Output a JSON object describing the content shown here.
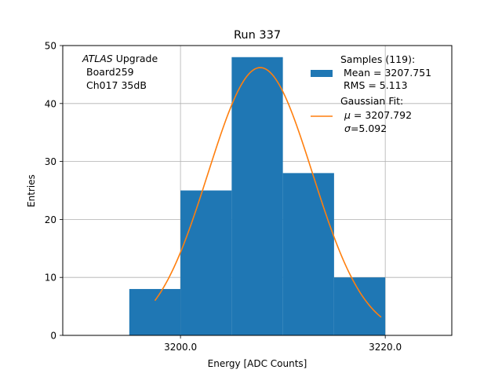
{
  "chart_data": {
    "type": "bar",
    "title": "Run 337",
    "xlabel": "Energy [ADC Counts]",
    "ylabel": "Entries",
    "xlim": [
      3188.5,
      3226.5
    ],
    "ylim": [
      0,
      50
    ],
    "x_ticks": [
      3200.0,
      3220.0
    ],
    "x_tick_labels": [
      "3200.0",
      "3220.0"
    ],
    "y_ticks": [
      0,
      10,
      20,
      30,
      40,
      50
    ],
    "y_tick_labels": [
      "0",
      "10",
      "20",
      "30",
      "40",
      "50"
    ],
    "grid": true,
    "bins": [
      {
        "left": 3195,
        "right": 3200,
        "count": 8
      },
      {
        "left": 3200,
        "right": 3205,
        "count": 25
      },
      {
        "left": 3205,
        "right": 3210,
        "count": 48
      },
      {
        "left": 3210,
        "right": 3215,
        "count": 28
      },
      {
        "left": 3215,
        "right": 3220,
        "count": 10
      }
    ],
    "fit": {
      "type": "gaussian",
      "amplitude": 46.2,
      "mu": 3207.792,
      "sigma": 5.092,
      "x_range": [
        3197.5,
        3219.6
      ]
    },
    "colors": {
      "histogram": "#1f77b4",
      "fit": "#ff7f0e",
      "grid": "#b0b0b0"
    },
    "annotation": {
      "atlas": "ATLAS",
      "upgrade": " Upgrade",
      "board": "Board259",
      "channel": "Ch017 35dB"
    },
    "legend": {
      "placement": "top-right",
      "samples_title": "Samples (119):",
      "samples_mean": " Mean = 3207.751",
      "samples_rms": " RMS = 5.113",
      "fit_title": "Gaussian Fit:",
      "fit_mu_symbol": "μ",
      "fit_mu_value": " = 3207.792",
      "fit_sigma_symbol": "σ",
      "fit_sigma_value": "=5.092"
    }
  }
}
